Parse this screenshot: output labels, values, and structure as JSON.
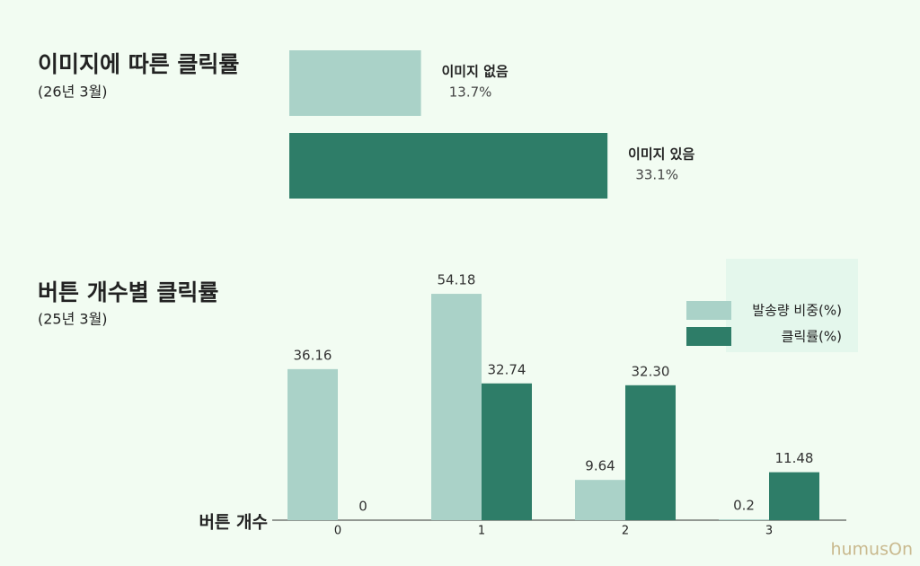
{
  "chart_data": [
    {
      "type": "hbar",
      "title": "이미지에 따른 클릭률",
      "subtitle": "(26년 3월)",
      "categories": [
        "이미지 없음",
        "이미지 있음"
      ],
      "values": [
        13.7,
        33.1
      ],
      "value_labels": [
        "13.7%",
        "33.1%"
      ],
      "colors": [
        "#aad2c8",
        "#2e7d68"
      ]
    },
    {
      "type": "grouped-bar",
      "title": "버튼 개수별 클릭률",
      "subtitle": "(25년 3월)",
      "x_label": "버튼 개수",
      "categories": [
        "0",
        "1",
        "2",
        "3"
      ],
      "series": [
        {
          "name": "발송량 비중(%)",
          "color": "#aad2c8",
          "values": [
            36.16,
            54.18,
            9.64,
            0.2
          ]
        },
        {
          "name": "클릭률(%)",
          "color": "#2e7d68",
          "values": [
            0,
            32.74,
            32.3,
            11.48
          ],
          "value_labels": [
            "0",
            "32.74",
            "32.30",
            "11.48"
          ]
        }
      ]
    }
  ],
  "logo": "humusOn"
}
